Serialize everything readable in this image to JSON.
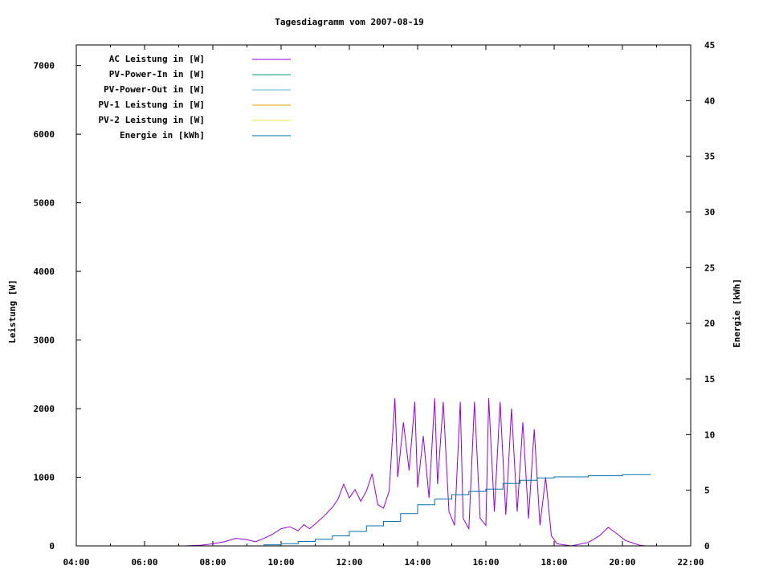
{
  "chart_data": {
    "type": "line",
    "title": "Tagesdiagramm vom 2007-08-19",
    "ylabel": "Leistung [W]",
    "y2label": "Energie [kWh]",
    "xlim": [
      "04:00",
      "22:00"
    ],
    "ylim": [
      0,
      7300
    ],
    "y2lim": [
      0,
      45
    ],
    "xticks": [
      "04:00",
      "06:00",
      "08:00",
      "10:00",
      "12:00",
      "14:00",
      "16:00",
      "18:00",
      "20:00",
      "22:00"
    ],
    "yticks": [
      "0",
      "1000",
      "2000",
      "3000",
      "4000",
      "5000",
      "6000",
      "7000"
    ],
    "y2ticks": [
      "0",
      "5",
      "10",
      "15",
      "20",
      "25",
      "30",
      "35",
      "40",
      "45"
    ],
    "legend_position": "top-left",
    "series": [
      {
        "name": "AC Leistung in [W]",
        "axis": "left",
        "color": "#9400d3",
        "points": [
          [
            "07:10",
            0
          ],
          [
            "07:40",
            10
          ],
          [
            "08:00",
            30
          ],
          [
            "08:20",
            60
          ],
          [
            "08:40",
            110
          ],
          [
            "09:00",
            90
          ],
          [
            "09:15",
            60
          ],
          [
            "09:30",
            110
          ],
          [
            "09:45",
            170
          ],
          [
            "10:00",
            250
          ],
          [
            "10:15",
            280
          ],
          [
            "10:30",
            220
          ],
          [
            "10:40",
            310
          ],
          [
            "10:50",
            250
          ],
          [
            "11:00",
            320
          ],
          [
            "11:15",
            430
          ],
          [
            "11:30",
            560
          ],
          [
            "11:40",
            680
          ],
          [
            "11:50",
            900
          ],
          [
            "12:00",
            700
          ],
          [
            "12:10",
            820
          ],
          [
            "12:20",
            650
          ],
          [
            "12:30",
            800
          ],
          [
            "12:40",
            1050
          ],
          [
            "12:50",
            600
          ],
          [
            "13:00",
            550
          ],
          [
            "13:10",
            800
          ],
          [
            "13:20",
            2150
          ],
          [
            "13:25",
            1000
          ],
          [
            "13:35",
            1800
          ],
          [
            "13:45",
            1100
          ],
          [
            "13:55",
            2100
          ],
          [
            "14:00",
            850
          ],
          [
            "14:10",
            1600
          ],
          [
            "14:20",
            700
          ],
          [
            "14:30",
            2150
          ],
          [
            "14:35",
            900
          ],
          [
            "14:45",
            2100
          ],
          [
            "14:55",
            500
          ],
          [
            "15:05",
            300
          ],
          [
            "15:15",
            2100
          ],
          [
            "15:20",
            400
          ],
          [
            "15:30",
            250
          ],
          [
            "15:40",
            2100
          ],
          [
            "15:50",
            400
          ],
          [
            "16:00",
            300
          ],
          [
            "16:05",
            2150
          ],
          [
            "16:15",
            500
          ],
          [
            "16:25",
            2100
          ],
          [
            "16:35",
            450
          ],
          [
            "16:45",
            2000
          ],
          [
            "16:55",
            500
          ],
          [
            "17:05",
            1800
          ],
          [
            "17:15",
            400
          ],
          [
            "17:25",
            1700
          ],
          [
            "17:35",
            300
          ],
          [
            "17:45",
            1000
          ],
          [
            "17:55",
            150
          ],
          [
            "18:05",
            30
          ],
          [
            "18:30",
            0
          ],
          [
            "19:00",
            50
          ],
          [
            "19:20",
            150
          ],
          [
            "19:35",
            270
          ],
          [
            "19:50",
            180
          ],
          [
            "20:05",
            80
          ],
          [
            "20:30",
            10
          ],
          [
            "20:40",
            0
          ]
        ]
      },
      {
        "name": "PV-Power-In in [W]",
        "axis": "left",
        "color": "#009e73",
        "points": []
      },
      {
        "name": "PV-Power-Out in [W]",
        "axis": "left",
        "color": "#56b4e9",
        "points": []
      },
      {
        "name": "PV-1 Leistung in [W]",
        "axis": "left",
        "color": "#e69f00",
        "points": []
      },
      {
        "name": "PV-2 Leistung in [W]",
        "axis": "left",
        "color": "#f0e442",
        "points": []
      },
      {
        "name": "Energie in [kWh]",
        "axis": "right",
        "color": "#0072b2",
        "points": [
          [
            "08:30",
            0
          ],
          [
            "09:30",
            0.1
          ],
          [
            "10:00",
            0.2
          ],
          [
            "10:30",
            0.4
          ],
          [
            "11:00",
            0.6
          ],
          [
            "11:30",
            0.9
          ],
          [
            "12:00",
            1.3
          ],
          [
            "12:30",
            1.8
          ],
          [
            "13:00",
            2.2
          ],
          [
            "13:30",
            2.9
          ],
          [
            "14:00",
            3.7
          ],
          [
            "14:30",
            4.2
          ],
          [
            "15:00",
            4.6
          ],
          [
            "15:30",
            4.9
          ],
          [
            "16:00",
            5.1
          ],
          [
            "16:30",
            5.6
          ],
          [
            "17:00",
            5.9
          ],
          [
            "17:30",
            6.1
          ],
          [
            "18:00",
            6.2
          ],
          [
            "19:00",
            6.3
          ],
          [
            "20:00",
            6.4
          ],
          [
            "20:50",
            6.4
          ]
        ]
      }
    ]
  }
}
